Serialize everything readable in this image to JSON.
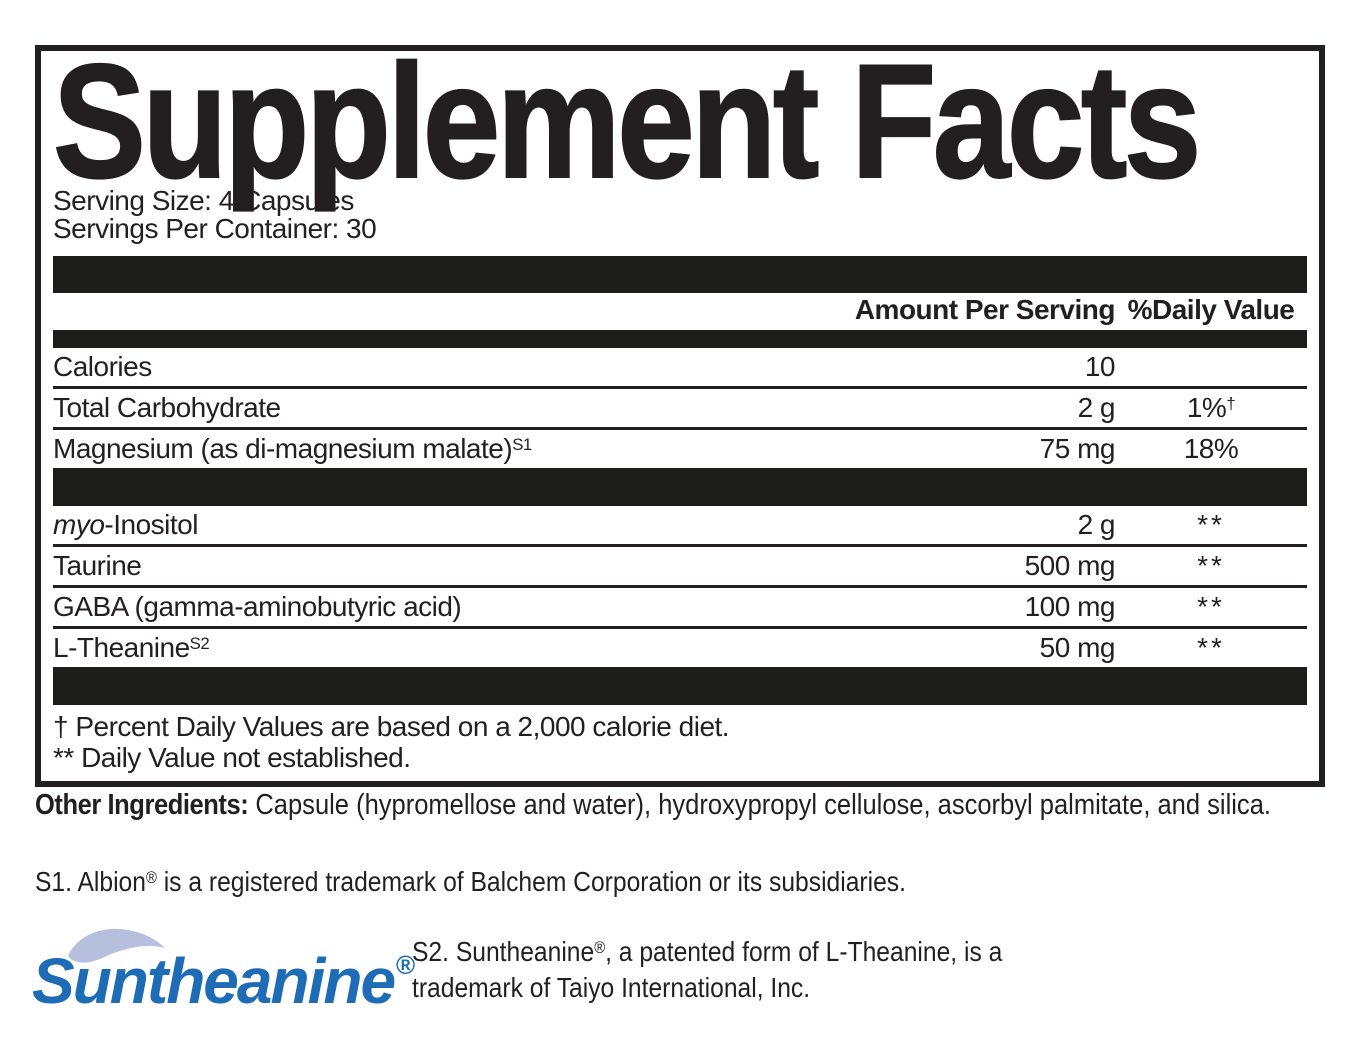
{
  "panel": {
    "title": "Supplement Facts",
    "serving_size": "Serving Size: 4 Capsules",
    "servings_per_container": "Servings Per Container: 30",
    "amount_header": "Amount Per Serving",
    "dv_header": "%Daily Value",
    "main_rows": [
      {
        "name_parts": [
          {
            "t": "Calories"
          }
        ],
        "amount": "10",
        "dv_parts": []
      },
      {
        "name_parts": [
          {
            "t": "Total Carbohydrate"
          }
        ],
        "amount": "2 g",
        "dv_parts": [
          {
            "t": "1%"
          },
          {
            "t": "†",
            "sup": true
          }
        ]
      },
      {
        "name_parts": [
          {
            "t": "Magnesium (as di-magnesium malate)"
          },
          {
            "t": "S1",
            "sup": true
          }
        ],
        "amount": "75 mg",
        "dv_parts": [
          {
            "t": "18%"
          }
        ]
      }
    ],
    "other_rows": [
      {
        "name_parts": [
          {
            "t": "myo",
            "italic": true
          },
          {
            "t": "-Inositol"
          }
        ],
        "amount": "2 g",
        "dv_parts": [
          {
            "t": "**",
            "stars": true
          }
        ]
      },
      {
        "name_parts": [
          {
            "t": "Taurine"
          }
        ],
        "amount": "500 mg",
        "dv_parts": [
          {
            "t": "**",
            "stars": true
          }
        ]
      },
      {
        "name_parts": [
          {
            "t": "GABA (gamma-aminobutyric acid)"
          }
        ],
        "amount": "100 mg",
        "dv_parts": [
          {
            "t": "**",
            "stars": true
          }
        ]
      },
      {
        "name_parts": [
          {
            "t": "L-Theanine"
          },
          {
            "t": "S2",
            "sup": true
          }
        ],
        "amount": "50 mg",
        "dv_parts": [
          {
            "t": "**",
            "stars": true
          }
        ]
      }
    ],
    "footnotes": [
      "† Percent Daily Values are based on a 2,000 calorie diet.",
      "** Daily Value not established."
    ]
  },
  "other_ingredients": {
    "label": "Other Ingredients:",
    "text": "Capsule (hypromellose and water), hydroxypropyl cellulose, ascorbyl palmitate, and silica."
  },
  "trademark_notes": {
    "s1_parts": [
      {
        "t": "S1. Albion"
      },
      {
        "t": "®",
        "sup": true
      },
      {
        "t": " is a registered trademark of Balchem Corporation or its subsidiaries."
      }
    ],
    "s2_line1_parts": [
      {
        "t": "S2. Suntheanine"
      },
      {
        "t": "®",
        "sup": true
      },
      {
        "t": ", a patented form of L-Theanine, is a"
      }
    ],
    "s2_line2": "trademark of Taiyo International, Inc."
  },
  "logo": {
    "text": "Suntheanine",
    "reg_mark": "®",
    "text_color": "#1e6cb5",
    "swoosh_color": "#b6c0de"
  },
  "colors": {
    "ink": "#231f20",
    "bar": "#1d1d1b"
  }
}
